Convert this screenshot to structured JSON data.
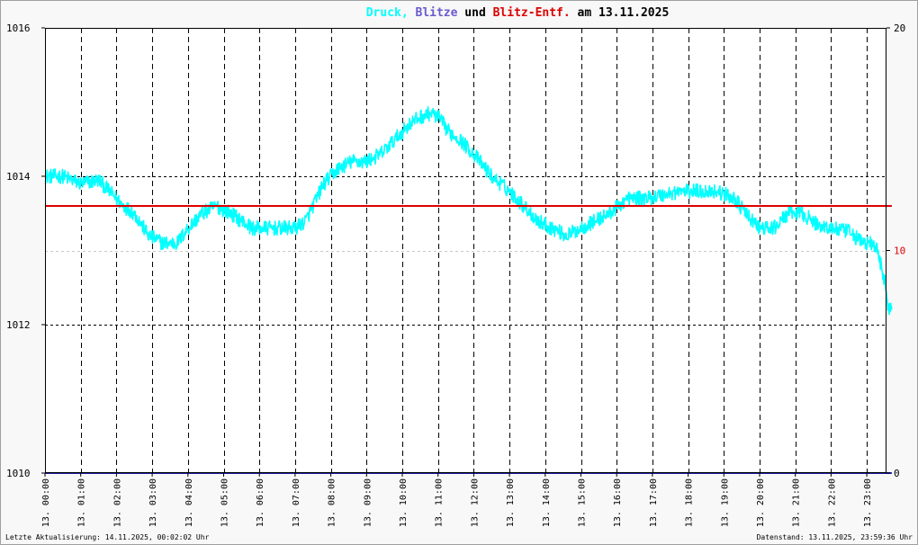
{
  "chart_data": {
    "type": "line",
    "title_parts": [
      {
        "text": "Druck,",
        "color": "#00ffff"
      },
      {
        "text": "Blitze",
        "color": "#6a5acd"
      },
      {
        "text": "und",
        "color": "#000000"
      },
      {
        "text": "Blitz-Entf.",
        "color": "#dd0000"
      },
      {
        "text": "am 13.11.2025",
        "color": "#000000"
      }
    ],
    "y_left": {
      "min": 1010,
      "max": 1016,
      "ticks": [
        "1010",
        "1012",
        "1014",
        "1016"
      ]
    },
    "y_right": {
      "min": 0,
      "max": 20,
      "ticks": [
        "0",
        "10",
        "20"
      ],
      "tick_colors": [
        "#000000",
        "#dd0000",
        "#000000"
      ]
    },
    "x_ticks": [
      "13. 00:00",
      "13. 01:00",
      "13. 02:00",
      "13. 03:00",
      "13. 04:00",
      "13. 05:00",
      "13. 06:00",
      "13. 07:00",
      "13. 08:00",
      "13. 09:00",
      "13. 10:00",
      "13. 11:00",
      "13. 12:00",
      "13. 13:00",
      "13. 14:00",
      "13. 15:00",
      "13. 16:00",
      "13. 17:00",
      "13. 18:00",
      "13. 19:00",
      "13. 20:00",
      "13. 21:00",
      "13. 22:00",
      "13. 23:00"
    ],
    "x_range_hours": [
      0,
      23.7
    ],
    "series": [
      {
        "axis": "left",
        "color": "#00ffff",
        "noise": 0.1,
        "x": [
          0,
          0.5,
          1,
          1.5,
          1.8,
          2.2,
          2.5,
          2.9,
          3.3,
          3.7,
          4,
          4.4,
          4.8,
          5.2,
          5.5,
          5.8,
          6.2,
          6.6,
          7,
          7.3,
          7.5,
          7.8,
          8.2,
          8.6,
          9,
          9.4,
          9.8,
          10.2,
          10.5,
          10.8,
          11,
          11.3,
          11.6,
          12,
          12.5,
          13,
          13.4,
          13.8,
          14.2,
          14.6,
          15,
          15.4,
          15.8,
          16.3,
          16.8,
          17.3,
          17.8,
          18.3,
          18.8,
          19.3,
          19.6,
          20,
          20.4,
          20.8,
          21.2,
          21.6,
          22,
          22.5,
          22.9,
          23.1,
          23.3,
          23.5,
          23.6,
          23.7
        ],
        "y": [
          1014.0,
          1014.0,
          1013.9,
          1013.95,
          1013.8,
          1013.6,
          1013.5,
          1013.2,
          1013.1,
          1013.1,
          1013.3,
          1013.5,
          1013.6,
          1013.5,
          1013.4,
          1013.3,
          1013.3,
          1013.3,
          1013.3,
          1013.4,
          1013.6,
          1013.9,
          1014.1,
          1014.2,
          1014.2,
          1014.3,
          1014.5,
          1014.7,
          1014.8,
          1014.85,
          1014.8,
          1014.6,
          1014.5,
          1014.3,
          1014.0,
          1013.8,
          1013.6,
          1013.4,
          1013.3,
          1013.2,
          1013.3,
          1013.4,
          1013.5,
          1013.7,
          1013.7,
          1013.75,
          1013.8,
          1013.8,
          1013.8,
          1013.7,
          1013.5,
          1013.3,
          1013.3,
          1013.5,
          1013.5,
          1013.35,
          1013.3,
          1013.25,
          1013.1,
          1013.1,
          1013.0,
          1012.6,
          1012.2,
          1012.25
        ]
      },
      {
        "axis": "right",
        "color": "#dd0000",
        "noise": 0,
        "x": [
          0,
          23.7
        ],
        "y": [
          12,
          12
        ]
      },
      {
        "axis": "right",
        "color": "#1a1aaa",
        "noise": 0,
        "x": [
          0,
          23.7
        ],
        "y": [
          0,
          0
        ]
      }
    ]
  },
  "footer": {
    "left": "Letzte Aktualisierung: 14.11.2025, 00:02:02 Uhr",
    "right": "Datenstand: 13.11.2025, 23:59:36 Uhr"
  }
}
